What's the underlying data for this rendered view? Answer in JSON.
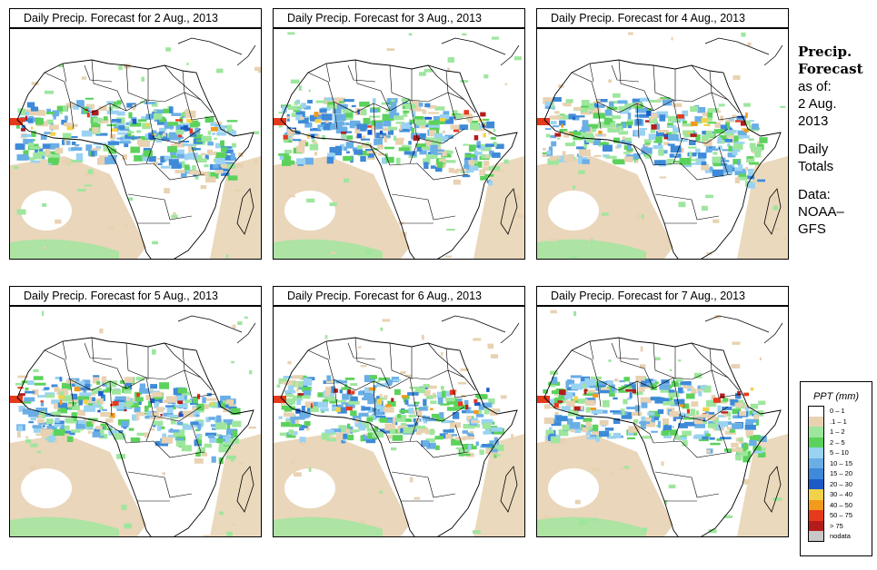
{
  "panels": [
    {
      "title": "Daily Precip. Forecast for  2 Aug., 2013"
    },
    {
      "title": "Daily Precip. Forecast for  3 Aug., 2013"
    },
    {
      "title": "Daily Precip. Forecast for  4 Aug., 2013"
    },
    {
      "title": "Daily Precip. Forecast for  5 Aug., 2013"
    },
    {
      "title": "Daily Precip. Forecast for  6 Aug., 2013"
    },
    {
      "title": "Daily Precip. Forecast for  7 Aug., 2013"
    }
  ],
  "sidebar": {
    "heading1": "Precip.",
    "heading2": "Forecast",
    "asof": "as of:",
    "date1": "2 Aug.",
    "date2": "2013",
    "daily1": "Daily",
    "daily2": "Totals",
    "data1": "Data:",
    "data2": "NOAA–",
    "data3": "GFS"
  },
  "legend": {
    "title": "PPT (mm)",
    "items": [
      {
        "label": "0 – 1",
        "color": "#ffffff"
      },
      {
        "label": ".1 – 1",
        "color": "#e8d2b2"
      },
      {
        "label": "1 – 2",
        "color": "#9ee69e"
      },
      {
        "label": "2 – 5",
        "color": "#5cd25c"
      },
      {
        "label": "5 – 10",
        "color": "#9ad2f2"
      },
      {
        "label": "10 – 15",
        "color": "#6aaee6"
      },
      {
        "label": "15 – 20",
        "color": "#3e8ad8"
      },
      {
        "label": "20 – 30",
        "color": "#1c5ac8"
      },
      {
        "label": "30 – 40",
        "color": "#f2d24a"
      },
      {
        "label": "40 – 50",
        "color": "#f29a1c"
      },
      {
        "label": "50 – 75",
        "color": "#e63a1c"
      },
      {
        "label": "> 75",
        "color": "#b41c1c"
      },
      {
        "label": "nodata",
        "color": "#c8c8c8"
      }
    ]
  }
}
